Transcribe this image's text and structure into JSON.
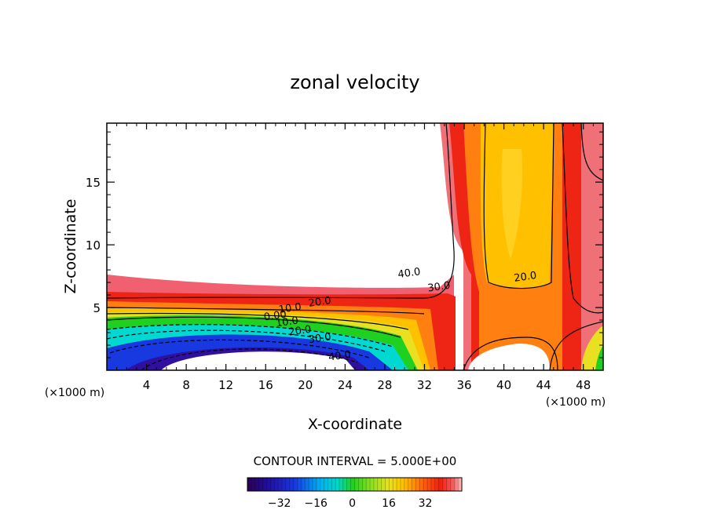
{
  "chart_data": {
    "type": "contour",
    "title": "zonal velocity",
    "xlabel": "X-coordinate",
    "ylabel": "Z-coordinate",
    "x_unit_left": "(×1000 m)",
    "x_unit_right": "(×1000 m)",
    "xlim": [
      0,
      50
    ],
    "ylim": [
      0,
      19.7
    ],
    "xticks": [
      4,
      8,
      12,
      16,
      20,
      24,
      28,
      32,
      36,
      40,
      44,
      48
    ],
    "yticks": [
      5,
      10,
      15
    ],
    "contour_interval_text": "CONTOUR INTERVAL = 5.000E+00",
    "contour_labels": [
      {
        "text": "40.0",
        "x": 30.5,
        "y": 7.5
      },
      {
        "text": "30.0",
        "x": 33.5,
        "y": 6.4
      },
      {
        "text": "20.0",
        "x": 42.2,
        "y": 7.2
      },
      {
        "text": "20.0",
        "x": 21.5,
        "y": 5.2
      },
      {
        "text": "10.0",
        "x": 18.5,
        "y": 4.7
      },
      {
        "text": "0.00",
        "x": 17.0,
        "y": 4.1
      },
      {
        "text": "10.0",
        "x": 18.2,
        "y": 3.6
      },
      {
        "text": "20.0",
        "x": 19.5,
        "y": 2.9
      },
      {
        "text": "30.0",
        "x": 21.5,
        "y": 2.3
      },
      {
        "text": "40.0",
        "x": 23.5,
        "y": 0.9
      }
    ],
    "colorbar": {
      "ticks": [
        "−32",
        "−16",
        "0",
        "16",
        "32"
      ],
      "tick_values": [
        -32,
        -16,
        0,
        16,
        32
      ],
      "range": [
        -46,
        48
      ]
    },
    "colors": {
      "neg_max": "#2a0050",
      "neg": "#1830d0",
      "zero_cyan": "#00d8e8",
      "zero_green": "#20d020",
      "low_pos": "#e8e020",
      "mid_pos": "#ffc000",
      "high_pos": "#ff3010",
      "max_pos": "#ffb8b8"
    }
  }
}
